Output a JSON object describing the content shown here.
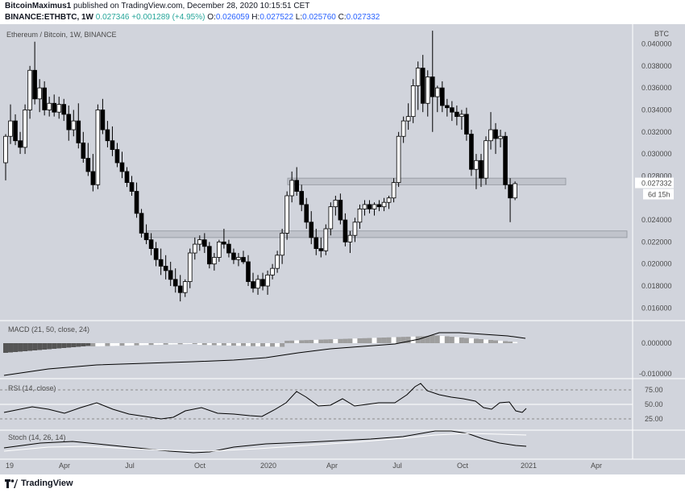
{
  "header": {
    "user": "BitcoinMaximus1",
    "published": " published on TradingView.com, December 28, 2020 10:15:51 CET",
    "symbol": "BINANCE:ETHBTC, 1W",
    "last": " 0.027346",
    "change": " +0.001289 (+4.95%)",
    "o_label": " O:",
    "o_value": "0.026059",
    "h_label": " H:",
    "h_value": "0.027522",
    "l_label": " L:",
    "l_value": "0.025760",
    "c_label": " C:",
    "c_value": "0.027332"
  },
  "footer": {
    "brand": "TradingView"
  },
  "colors": {
    "panel_bg": "#d1d4dc",
    "up_body": "#ffffff",
    "down_body": "#000000",
    "zone_fill": "#c0c3cb",
    "macd_line": "#000000",
    "hist_light": "#ffffff",
    "hist_grey": "#9e9e9e",
    "hist_dark": "#555555"
  },
  "chart_data": {
    "type": "candlestick",
    "title": "Ethereum / Bitcoin, 1W, BINANCE",
    "currency": "BTC",
    "y_ticks": [
      "0.040000",
      "0.038000",
      "0.036000",
      "0.034000",
      "0.032000",
      "0.030000",
      "0.028000",
      "0.024000",
      "0.022000",
      "0.020000",
      "0.018000",
      "0.016000"
    ],
    "ylim": [
      0.015,
      0.0415
    ],
    "x_ticks": [
      "19",
      "Apr",
      "Jul",
      "Oct",
      "2020",
      "Apr",
      "Jul",
      "Oct",
      "2021",
      "Apr"
    ],
    "last_price_label": "0.027332",
    "countdown_label": "6d 15h",
    "zones": [
      {
        "from": 0.0272,
        "to": 0.0278
      },
      {
        "from": 0.0224,
        "to": 0.023
      }
    ],
    "candles": [
      {
        "o": 0.0292,
        "h": 0.0318,
        "l": 0.0276,
        "c": 0.0316
      },
      {
        "o": 0.0316,
        "h": 0.0345,
        "l": 0.0309,
        "c": 0.033
      },
      {
        "o": 0.033,
        "h": 0.0336,
        "l": 0.0308,
        "c": 0.0312
      },
      {
        "o": 0.0312,
        "h": 0.032,
        "l": 0.03,
        "c": 0.0306
      },
      {
        "o": 0.0306,
        "h": 0.0345,
        "l": 0.03,
        "c": 0.034
      },
      {
        "o": 0.034,
        "h": 0.038,
        "l": 0.0332,
        "c": 0.0376
      },
      {
        "o": 0.0376,
        "h": 0.0402,
        "l": 0.0345,
        "c": 0.035
      },
      {
        "o": 0.035,
        "h": 0.0368,
        "l": 0.0338,
        "c": 0.036
      },
      {
        "o": 0.036,
        "h": 0.0366,
        "l": 0.0335,
        "c": 0.034
      },
      {
        "o": 0.034,
        "h": 0.0352,
        "l": 0.0334,
        "c": 0.0346
      },
      {
        "o": 0.0346,
        "h": 0.0354,
        "l": 0.0334,
        "c": 0.0338
      },
      {
        "o": 0.0338,
        "h": 0.0352,
        "l": 0.0332,
        "c": 0.0345
      },
      {
        "o": 0.0345,
        "h": 0.035,
        "l": 0.033,
        "c": 0.0336
      },
      {
        "o": 0.0336,
        "h": 0.0344,
        "l": 0.0312,
        "c": 0.0322
      },
      {
        "o": 0.0322,
        "h": 0.034,
        "l": 0.0316,
        "c": 0.033
      },
      {
        "o": 0.033,
        "h": 0.0346,
        "l": 0.0305,
        "c": 0.031
      },
      {
        "o": 0.031,
        "h": 0.032,
        "l": 0.0292,
        "c": 0.0296
      },
      {
        "o": 0.0296,
        "h": 0.031,
        "l": 0.028,
        "c": 0.0284
      },
      {
        "o": 0.0284,
        "h": 0.03,
        "l": 0.0266,
        "c": 0.0272
      },
      {
        "o": 0.0272,
        "h": 0.0345,
        "l": 0.0268,
        "c": 0.034
      },
      {
        "o": 0.034,
        "h": 0.035,
        "l": 0.0318,
        "c": 0.0322
      },
      {
        "o": 0.0322,
        "h": 0.033,
        "l": 0.0306,
        "c": 0.0312
      },
      {
        "o": 0.0312,
        "h": 0.0325,
        "l": 0.0298,
        "c": 0.0304
      },
      {
        "o": 0.0304,
        "h": 0.031,
        "l": 0.0288,
        "c": 0.0292
      },
      {
        "o": 0.0292,
        "h": 0.0302,
        "l": 0.0278,
        "c": 0.0284
      },
      {
        "o": 0.0284,
        "h": 0.0288,
        "l": 0.027,
        "c": 0.0274
      },
      {
        "o": 0.0274,
        "h": 0.028,
        "l": 0.0262,
        "c": 0.0266
      },
      {
        "o": 0.0266,
        "h": 0.0274,
        "l": 0.0242,
        "c": 0.0246
      },
      {
        "o": 0.0246,
        "h": 0.025,
        "l": 0.0224,
        "c": 0.0228
      },
      {
        "o": 0.0228,
        "h": 0.0236,
        "l": 0.0218,
        "c": 0.0222
      },
      {
        "o": 0.0222,
        "h": 0.0228,
        "l": 0.0208,
        "c": 0.0214
      },
      {
        "o": 0.0214,
        "h": 0.022,
        "l": 0.0198,
        "c": 0.0204
      },
      {
        "o": 0.0204,
        "h": 0.0214,
        "l": 0.019,
        "c": 0.0198
      },
      {
        "o": 0.0198,
        "h": 0.0208,
        "l": 0.0186,
        "c": 0.0194
      },
      {
        "o": 0.0194,
        "h": 0.0202,
        "l": 0.018,
        "c": 0.0186
      },
      {
        "o": 0.0186,
        "h": 0.0196,
        "l": 0.0174,
        "c": 0.018
      },
      {
        "o": 0.018,
        "h": 0.019,
        "l": 0.0166,
        "c": 0.0174
      },
      {
        "o": 0.0174,
        "h": 0.0186,
        "l": 0.017,
        "c": 0.0184
      },
      {
        "o": 0.0184,
        "h": 0.0214,
        "l": 0.0178,
        "c": 0.021
      },
      {
        "o": 0.021,
        "h": 0.0224,
        "l": 0.0204,
        "c": 0.0218
      },
      {
        "o": 0.0218,
        "h": 0.0226,
        "l": 0.0212,
        "c": 0.0222
      },
      {
        "o": 0.0222,
        "h": 0.0228,
        "l": 0.021,
        "c": 0.0216
      },
      {
        "o": 0.0216,
        "h": 0.022,
        "l": 0.0196,
        "c": 0.02
      },
      {
        "o": 0.02,
        "h": 0.021,
        "l": 0.0194,
        "c": 0.0206
      },
      {
        "o": 0.0206,
        "h": 0.0222,
        "l": 0.0202,
        "c": 0.022
      },
      {
        "o": 0.022,
        "h": 0.0232,
        "l": 0.0214,
        "c": 0.0218
      },
      {
        "o": 0.0218,
        "h": 0.0222,
        "l": 0.0206,
        "c": 0.021
      },
      {
        "o": 0.021,
        "h": 0.0214,
        "l": 0.02,
        "c": 0.0204
      },
      {
        "o": 0.0204,
        "h": 0.021,
        "l": 0.0198,
        "c": 0.0206
      },
      {
        "o": 0.0206,
        "h": 0.0212,
        "l": 0.02,
        "c": 0.0202
      },
      {
        "o": 0.0202,
        "h": 0.0208,
        "l": 0.018,
        "c": 0.0184
      },
      {
        "o": 0.0184,
        "h": 0.0192,
        "l": 0.0174,
        "c": 0.0178
      },
      {
        "o": 0.0178,
        "h": 0.019,
        "l": 0.0172,
        "c": 0.0186
      },
      {
        "o": 0.0186,
        "h": 0.0192,
        "l": 0.0176,
        "c": 0.018
      },
      {
        "o": 0.018,
        "h": 0.0194,
        "l": 0.0172,
        "c": 0.019
      },
      {
        "o": 0.019,
        "h": 0.02,
        "l": 0.0186,
        "c": 0.0196
      },
      {
        "o": 0.0196,
        "h": 0.0212,
        "l": 0.0192,
        "c": 0.0208
      },
      {
        "o": 0.0208,
        "h": 0.0232,
        "l": 0.02,
        "c": 0.0228
      },
      {
        "o": 0.0228,
        "h": 0.0266,
        "l": 0.0222,
        "c": 0.0262
      },
      {
        "o": 0.0262,
        "h": 0.0284,
        "l": 0.0256,
        "c": 0.0276
      },
      {
        "o": 0.0276,
        "h": 0.0288,
        "l": 0.0262,
        "c": 0.0266
      },
      {
        "o": 0.0266,
        "h": 0.0272,
        "l": 0.0248,
        "c": 0.0254
      },
      {
        "o": 0.0254,
        "h": 0.026,
        "l": 0.0232,
        "c": 0.0238
      },
      {
        "o": 0.0238,
        "h": 0.0248,
        "l": 0.0218,
        "c": 0.0224
      },
      {
        "o": 0.0224,
        "h": 0.0232,
        "l": 0.0208,
        "c": 0.0214
      },
      {
        "o": 0.0214,
        "h": 0.0224,
        "l": 0.0206,
        "c": 0.0212
      },
      {
        "o": 0.0212,
        "h": 0.0236,
        "l": 0.0208,
        "c": 0.0232
      },
      {
        "o": 0.0232,
        "h": 0.0256,
        "l": 0.0226,
        "c": 0.0252
      },
      {
        "o": 0.0252,
        "h": 0.0262,
        "l": 0.0244,
        "c": 0.0258
      },
      {
        "o": 0.0258,
        "h": 0.0264,
        "l": 0.0236,
        "c": 0.024
      },
      {
        "o": 0.024,
        "h": 0.0246,
        "l": 0.0216,
        "c": 0.022
      },
      {
        "o": 0.022,
        "h": 0.023,
        "l": 0.021,
        "c": 0.0226
      },
      {
        "o": 0.0226,
        "h": 0.0242,
        "l": 0.022,
        "c": 0.0238
      },
      {
        "o": 0.0238,
        "h": 0.0254,
        "l": 0.0232,
        "c": 0.025
      },
      {
        "o": 0.025,
        "h": 0.0258,
        "l": 0.0244,
        "c": 0.0254
      },
      {
        "o": 0.0254,
        "h": 0.0258,
        "l": 0.0246,
        "c": 0.025
      },
      {
        "o": 0.025,
        "h": 0.0256,
        "l": 0.0244,
        "c": 0.0254
      },
      {
        "o": 0.0254,
        "h": 0.0258,
        "l": 0.0248,
        "c": 0.0252
      },
      {
        "o": 0.0252,
        "h": 0.026,
        "l": 0.0248,
        "c": 0.0256
      },
      {
        "o": 0.0256,
        "h": 0.0262,
        "l": 0.025,
        "c": 0.026
      },
      {
        "o": 0.026,
        "h": 0.0278,
        "l": 0.0256,
        "c": 0.0274
      },
      {
        "o": 0.0274,
        "h": 0.032,
        "l": 0.027,
        "c": 0.0316
      },
      {
        "o": 0.0316,
        "h": 0.0334,
        "l": 0.031,
        "c": 0.033
      },
      {
        "o": 0.033,
        "h": 0.0346,
        "l": 0.0322,
        "c": 0.0334
      },
      {
        "o": 0.0334,
        "h": 0.0368,
        "l": 0.0328,
        "c": 0.0362
      },
      {
        "o": 0.0362,
        "h": 0.0384,
        "l": 0.034,
        "c": 0.0378
      },
      {
        "o": 0.0378,
        "h": 0.039,
        "l": 0.0338,
        "c": 0.0346
      },
      {
        "o": 0.0346,
        "h": 0.0376,
        "l": 0.0334,
        "c": 0.037
      },
      {
        "o": 0.037,
        "h": 0.0412,
        "l": 0.032,
        "c": 0.0352
      },
      {
        "o": 0.0352,
        "h": 0.0362,
        "l": 0.0338,
        "c": 0.036
      },
      {
        "o": 0.036,
        "h": 0.0366,
        "l": 0.0338,
        "c": 0.0344
      },
      {
        "o": 0.0344,
        "h": 0.035,
        "l": 0.0334,
        "c": 0.0342
      },
      {
        "o": 0.0342,
        "h": 0.0348,
        "l": 0.033,
        "c": 0.0338
      },
      {
        "o": 0.0338,
        "h": 0.0344,
        "l": 0.0326,
        "c": 0.0334
      },
      {
        "o": 0.0334,
        "h": 0.034,
        "l": 0.0322,
        "c": 0.0336
      },
      {
        "o": 0.0336,
        "h": 0.0342,
        "l": 0.0312,
        "c": 0.0318
      },
      {
        "o": 0.0318,
        "h": 0.0322,
        "l": 0.028,
        "c": 0.0286
      },
      {
        "o": 0.0286,
        "h": 0.03,
        "l": 0.0268,
        "c": 0.0294
      },
      {
        "o": 0.0294,
        "h": 0.03,
        "l": 0.027,
        "c": 0.0278
      },
      {
        "o": 0.0278,
        "h": 0.0316,
        "l": 0.0272,
        "c": 0.0312
      },
      {
        "o": 0.0312,
        "h": 0.0338,
        "l": 0.0304,
        "c": 0.0322
      },
      {
        "o": 0.0322,
        "h": 0.0328,
        "l": 0.03,
        "c": 0.0314
      },
      {
        "o": 0.0314,
        "h": 0.0322,
        "l": 0.0306,
        "c": 0.0316
      },
      {
        "o": 0.0316,
        "h": 0.032,
        "l": 0.0268,
        "c": 0.0272
      },
      {
        "o": 0.0272,
        "h": 0.0278,
        "l": 0.0238,
        "c": 0.026
      },
      {
        "o": 0.026,
        "h": 0.0275,
        "l": 0.0258,
        "c": 0.0273
      }
    ],
    "indicators": [
      {
        "name": "MACD (21, 50, close, 24)",
        "ticks": [
          "0.000000",
          "-0.010000"
        ]
      },
      {
        "name": "RSI (14, close)",
        "ticks": [
          "75.00",
          "50.00",
          "25.00"
        ]
      },
      {
        "name": "Stoch (14, 26, 14)",
        "ticks": []
      }
    ]
  }
}
